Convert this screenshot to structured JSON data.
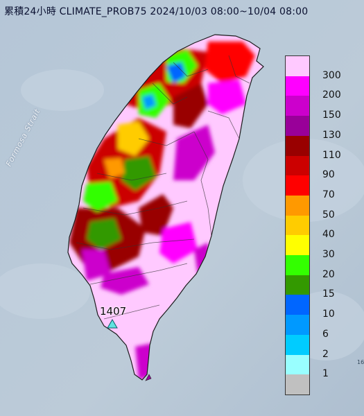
{
  "header": {
    "title": "累積24小時 CLIMATE_PROB75 2024/10/03 08:00~10/04 08:00"
  },
  "map": {
    "strait_label": "Formosa Strait",
    "station": {
      "label": "1407",
      "icon": "triangle-marker-icon",
      "color": "#5fe3df"
    },
    "corner_note": "16"
  },
  "legend": {
    "items": [
      {
        "label": "300",
        "color": "#ffc9ff"
      },
      {
        "label": "200",
        "color": "#ff00ff"
      },
      {
        "label": "150",
        "color": "#cc00cc"
      },
      {
        "label": "130",
        "color": "#990099"
      },
      {
        "label": "110",
        "color": "#990000"
      },
      {
        "label": "90",
        "color": "#cc0000"
      },
      {
        "label": "70",
        "color": "#ff0000"
      },
      {
        "label": "50",
        "color": "#ff9900"
      },
      {
        "label": "40",
        "color": "#ffcc00"
      },
      {
        "label": "30",
        "color": "#ffff00"
      },
      {
        "label": "20",
        "color": "#33ff00"
      },
      {
        "label": "15",
        "color": "#339900"
      },
      {
        "label": "10",
        "color": "#0066ff"
      },
      {
        "label": "6",
        "color": "#0099ff"
      },
      {
        "label": "2",
        "color": "#00ccff"
      },
      {
        "label": "1",
        "color": "#99ffff"
      },
      {
        "label": "",
        "color": "#c0c0c0"
      }
    ]
  },
  "colors": {
    "sea": "#b9c8d6",
    "island_base": "#ffc9ff"
  }
}
